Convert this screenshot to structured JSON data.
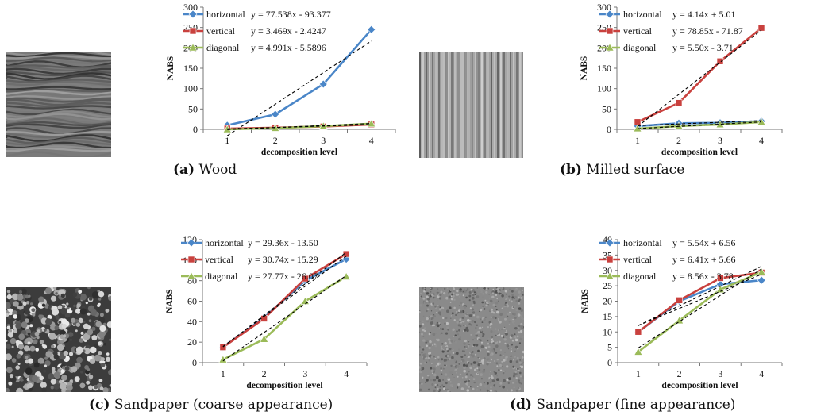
{
  "colors": {
    "horizontal": "#4a86c8",
    "vertical": "#c9413e",
    "diagonal": "#9bbb59",
    "trend": "#000000"
  },
  "panels": [
    {
      "id": "a",
      "caption_letter": "(a)",
      "caption_text": " Wood",
      "texture_kind": "wood",
      "texture_icon": "wood-texture-image"
    },
    {
      "id": "b",
      "caption_letter": "(b)",
      "caption_text": " Milled surface",
      "texture_kind": "milled",
      "texture_icon": "milled-surface-texture-image"
    },
    {
      "id": "c",
      "caption_letter": "(c)",
      "caption_text": " Sandpaper (coarse appearance)",
      "texture_kind": "coarse",
      "texture_icon": "coarse-sandpaper-texture-image"
    },
    {
      "id": "d",
      "caption_letter": "(d)",
      "caption_text": " Sandpaper (fine appearance)",
      "texture_kind": "fine",
      "texture_icon": "fine-sandpaper-texture-image"
    }
  ],
  "chart_data": [
    {
      "type": "line",
      "xlabel": "decomposition level",
      "ylabel": "NABS",
      "categories": [
        "1",
        "2",
        "3",
        "4"
      ],
      "ylim": [
        0,
        300
      ],
      "yticks": [
        "0",
        "50",
        "100",
        "150",
        "200",
        "250",
        "300"
      ],
      "series": [
        {
          "name": "horizontal",
          "marker": "diamond",
          "values": [
            10,
            37,
            111,
            245
          ],
          "trend": {
            "slope": 77.538,
            "intercept": -93.377
          },
          "equation": "y = 77.538x - 93.377"
        },
        {
          "name": "vertical",
          "marker": "square",
          "values": [
            2,
            4,
            7,
            12
          ],
          "trend": {
            "slope": 3.469,
            "intercept": -2.4247
          },
          "equation": "y = 3.469x - 2.4247"
        },
        {
          "name": "diagonal",
          "marker": "triangle",
          "values": [
            0,
            3,
            8,
            14
          ],
          "trend": {
            "slope": 4.991,
            "intercept": -5.5896
          },
          "equation": "y = 4.991x - 5.5896"
        }
      ]
    },
    {
      "type": "line",
      "xlabel": "decomposition level",
      "ylabel": "NABS",
      "categories": [
        "1",
        "2",
        "3",
        "4"
      ],
      "ylim": [
        0,
        300
      ],
      "yticks": [
        "0",
        "50",
        "100",
        "150",
        "200",
        "250",
        "300"
      ],
      "series": [
        {
          "name": "horizontal",
          "marker": "diamond",
          "values": [
            8,
            15,
            16,
            20
          ],
          "trend": {
            "slope": 4.14,
            "intercept": 5.01
          },
          "equation": "y = 4.14x + 5.01"
        },
        {
          "name": "vertical",
          "marker": "square",
          "values": [
            18,
            65,
            167,
            249
          ],
          "trend": {
            "slope": 78.85,
            "intercept": -71.87
          },
          "equation": "y = 78.85x - 71.87"
        },
        {
          "name": "diagonal",
          "marker": "triangle",
          "values": [
            2,
            8,
            12,
            18
          ],
          "trend": {
            "slope": 5.5,
            "intercept": -3.71
          },
          "equation": "y = 5.50x - 3.71"
        }
      ]
    },
    {
      "type": "line",
      "xlabel": "decomposition level",
      "ylabel": "NABS",
      "categories": [
        "1",
        "2",
        "3",
        "4"
      ],
      "ylim": [
        0,
        120
      ],
      "yticks": [
        "0",
        "20",
        "40",
        "60",
        "80",
        "100",
        "120"
      ],
      "series": [
        {
          "name": "horizontal",
          "marker": "diamond",
          "values": [
            15,
            44,
            80,
            101
          ],
          "trend": {
            "slope": 29.36,
            "intercept": -13.5
          },
          "equation": "y = 29.36x - 13.50"
        },
        {
          "name": "vertical",
          "marker": "square",
          "values": [
            15,
            43,
            82,
            106
          ],
          "trend": {
            "slope": 30.74,
            "intercept": -15.29
          },
          "equation": "y = 30.74x - 15.29"
        },
        {
          "name": "diagonal",
          "marker": "triangle",
          "values": [
            3,
            23,
            60,
            84
          ],
          "trend": {
            "slope": 27.77,
            "intercept": -26.07
          },
          "equation": "y = 27.77x - 26.07"
        }
      ]
    },
    {
      "type": "line",
      "xlabel": "decomposition level",
      "ylabel": "NABS",
      "categories": [
        "1",
        "2",
        "3",
        "4"
      ],
      "ylim": [
        0,
        40
      ],
      "yticks": [
        "0",
        "5",
        "10",
        "15",
        "20",
        "25",
        "30",
        "35",
        "40"
      ],
      "series": [
        {
          "name": "horizontal",
          "marker": "diamond",
          "values": [
            10,
            20,
            25.5,
            26.8
          ],
          "trend": {
            "slope": 5.54,
            "intercept": 6.56
          },
          "equation": "y = 5.54x + 6.56"
        },
        {
          "name": "vertical",
          "marker": "square",
          "values": [
            10,
            20.3,
            27.5,
            29.3
          ],
          "trend": {
            "slope": 6.41,
            "intercept": 5.66
          },
          "equation": "y = 6.41x + 5.66"
        },
        {
          "name": "diagonal",
          "marker": "triangle",
          "values": [
            3.5,
            13.7,
            23.8,
            29.5
          ],
          "trend": {
            "slope": 8.56,
            "intercept": -3.78
          },
          "equation": "y = 8.56x - 3.78"
        }
      ]
    }
  ]
}
